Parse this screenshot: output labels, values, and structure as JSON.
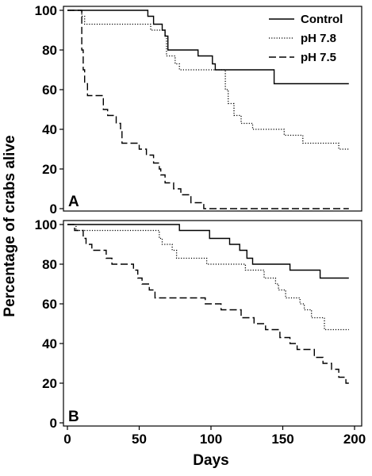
{
  "figure": {
    "ylabel": "Percentage of crabs alive",
    "xlabel": "Days"
  },
  "chart_data": [
    {
      "type": "line",
      "panel_label": "A",
      "xlim": [
        0,
        200
      ],
      "ylim": [
        0,
        100
      ],
      "yticks": [
        0,
        20,
        40,
        60,
        80,
        100
      ],
      "xticks": [],
      "legend": "top-right",
      "series": [
        {
          "name": "Control",
          "style": "solid",
          "points": [
            [
              0,
              100
            ],
            [
              56,
              100
            ],
            [
              56,
              97
            ],
            [
              60,
              97
            ],
            [
              60,
              93
            ],
            [
              66,
              93
            ],
            [
              66,
              90
            ],
            [
              68,
              90
            ],
            [
              68,
              87
            ],
            [
              70,
              87
            ],
            [
              70,
              80
            ],
            [
              91,
              80
            ],
            [
              91,
              77
            ],
            [
              101,
              77
            ],
            [
              101,
              73
            ],
            [
              103,
              73
            ],
            [
              103,
              70
            ],
            [
              144,
              70
            ],
            [
              144,
              63
            ],
            [
              196,
              63
            ]
          ]
        },
        {
          "name": "pH 7.8",
          "style": "dotted",
          "points": [
            [
              0,
              100
            ],
            [
              10,
              100
            ],
            [
              10,
              97
            ],
            [
              12,
              97
            ],
            [
              12,
              93
            ],
            [
              58,
              93
            ],
            [
              58,
              90
            ],
            [
              68,
              90
            ],
            [
              68,
              87
            ],
            [
              69,
              87
            ],
            [
              69,
              77
            ],
            [
              75,
              77
            ],
            [
              75,
              73
            ],
            [
              78,
              73
            ],
            [
              78,
              70
            ],
            [
              110,
              70
            ],
            [
              110,
              60
            ],
            [
              112,
              60
            ],
            [
              112,
              53
            ],
            [
              116,
              53
            ],
            [
              116,
              47
            ],
            [
              121,
              47
            ],
            [
              121,
              43
            ],
            [
              129,
              43
            ],
            [
              129,
              40
            ],
            [
              151,
              40
            ],
            [
              151,
              37
            ],
            [
              164,
              37
            ],
            [
              164,
              33
            ],
            [
              189,
              33
            ],
            [
              189,
              30
            ],
            [
              196,
              30
            ]
          ]
        },
        {
          "name": "pH 7.5",
          "style": "dashed",
          "points": [
            [
              0,
              100
            ],
            [
              10,
              100
            ],
            [
              10,
              80
            ],
            [
              11,
              80
            ],
            [
              11,
              70
            ],
            [
              12,
              70
            ],
            [
              12,
              63
            ],
            [
              14,
              63
            ],
            [
              14,
              57
            ],
            [
              25,
              57
            ],
            [
              25,
              50
            ],
            [
              28,
              50
            ],
            [
              28,
              47
            ],
            [
              34,
              47
            ],
            [
              34,
              43
            ],
            [
              37,
              43
            ],
            [
              37,
              40
            ],
            [
              38,
              40
            ],
            [
              38,
              33
            ],
            [
              50,
              33
            ],
            [
              50,
              30
            ],
            [
              55,
              30
            ],
            [
              55,
              27
            ],
            [
              60,
              27
            ],
            [
              60,
              23
            ],
            [
              64,
              23
            ],
            [
              64,
              20
            ],
            [
              65,
              20
            ],
            [
              65,
              17
            ],
            [
              68,
              17
            ],
            [
              68,
              13
            ],
            [
              74,
              13
            ],
            [
              74,
              10
            ],
            [
              79,
              10
            ],
            [
              79,
              7
            ],
            [
              86,
              7
            ],
            [
              86,
              3
            ],
            [
              95,
              3
            ],
            [
              95,
              0
            ],
            [
              196,
              0
            ]
          ]
        }
      ]
    },
    {
      "type": "line",
      "panel_label": "B",
      "xlim": [
        0,
        200
      ],
      "ylim": [
        0,
        100
      ],
      "yticks": [
        0,
        20,
        40,
        60,
        80,
        100
      ],
      "xticks": [
        0,
        50,
        100,
        150,
        200
      ],
      "series": [
        {
          "name": "Control",
          "style": "solid",
          "points": [
            [
              0,
              100
            ],
            [
              78,
              100
            ],
            [
              78,
              97
            ],
            [
              99,
              97
            ],
            [
              99,
              93
            ],
            [
              113,
              93
            ],
            [
              113,
              90
            ],
            [
              120,
              90
            ],
            [
              120,
              87
            ],
            [
              125,
              87
            ],
            [
              125,
              83
            ],
            [
              129,
              83
            ],
            [
              129,
              80
            ],
            [
              155,
              80
            ],
            [
              155,
              77
            ],
            [
              176,
              77
            ],
            [
              176,
              73
            ],
            [
              196,
              73
            ]
          ]
        },
        {
          "name": "pH 7.8",
          "style": "dotted",
          "points": [
            [
              0,
              100
            ],
            [
              6,
              100
            ],
            [
              6,
              97
            ],
            [
              64,
              97
            ],
            [
              64,
              93
            ],
            [
              66,
              93
            ],
            [
              66,
              90
            ],
            [
              73,
              90
            ],
            [
              73,
              87
            ],
            [
              76,
              87
            ],
            [
              76,
              83
            ],
            [
              97,
              83
            ],
            [
              97,
              80
            ],
            [
              124,
              80
            ],
            [
              124,
              77
            ],
            [
              137,
              77
            ],
            [
              137,
              73
            ],
            [
              145,
              73
            ],
            [
              145,
              70
            ],
            [
              147,
              70
            ],
            [
              147,
              67
            ],
            [
              152,
              67
            ],
            [
              152,
              63
            ],
            [
              162,
              63
            ],
            [
              162,
              60
            ],
            [
              165,
              60
            ],
            [
              165,
              57
            ],
            [
              170,
              57
            ],
            [
              170,
              53
            ],
            [
              179,
              53
            ],
            [
              179,
              47
            ],
            [
              196,
              47
            ]
          ]
        },
        {
          "name": "pH 7.5",
          "style": "dashed",
          "points": [
            [
              0,
              100
            ],
            [
              5,
              100
            ],
            [
              5,
              97
            ],
            [
              11,
              97
            ],
            [
              11,
              93
            ],
            [
              13,
              93
            ],
            [
              13,
              90
            ],
            [
              17,
              90
            ],
            [
              17,
              87
            ],
            [
              27,
              87
            ],
            [
              27,
              83
            ],
            [
              31,
              83
            ],
            [
              31,
              80
            ],
            [
              46,
              80
            ],
            [
              46,
              77
            ],
            [
              49,
              77
            ],
            [
              49,
              73
            ],
            [
              52,
              73
            ],
            [
              52,
              70
            ],
            [
              57,
              70
            ],
            [
              57,
              67
            ],
            [
              61,
              67
            ],
            [
              61,
              63
            ],
            [
              96,
              63
            ],
            [
              96,
              60
            ],
            [
              107,
              60
            ],
            [
              107,
              57
            ],
            [
              121,
              57
            ],
            [
              121,
              53
            ],
            [
              130,
              53
            ],
            [
              130,
              50
            ],
            [
              138,
              50
            ],
            [
              138,
              47
            ],
            [
              148,
              47
            ],
            [
              148,
              43
            ],
            [
              155,
              43
            ],
            [
              155,
              40
            ],
            [
              160,
              40
            ],
            [
              160,
              37
            ],
            [
              163,
              37
            ],
            [
              163,
              37
            ],
            [
              172,
              37
            ],
            [
              172,
              33
            ],
            [
              178,
              33
            ],
            [
              178,
              30
            ],
            [
              184,
              30
            ],
            [
              184,
              27
            ],
            [
              189,
              27
            ],
            [
              189,
              23
            ],
            [
              194,
              23
            ],
            [
              194,
              20
            ],
            [
              196,
              20
            ]
          ]
        }
      ]
    }
  ]
}
